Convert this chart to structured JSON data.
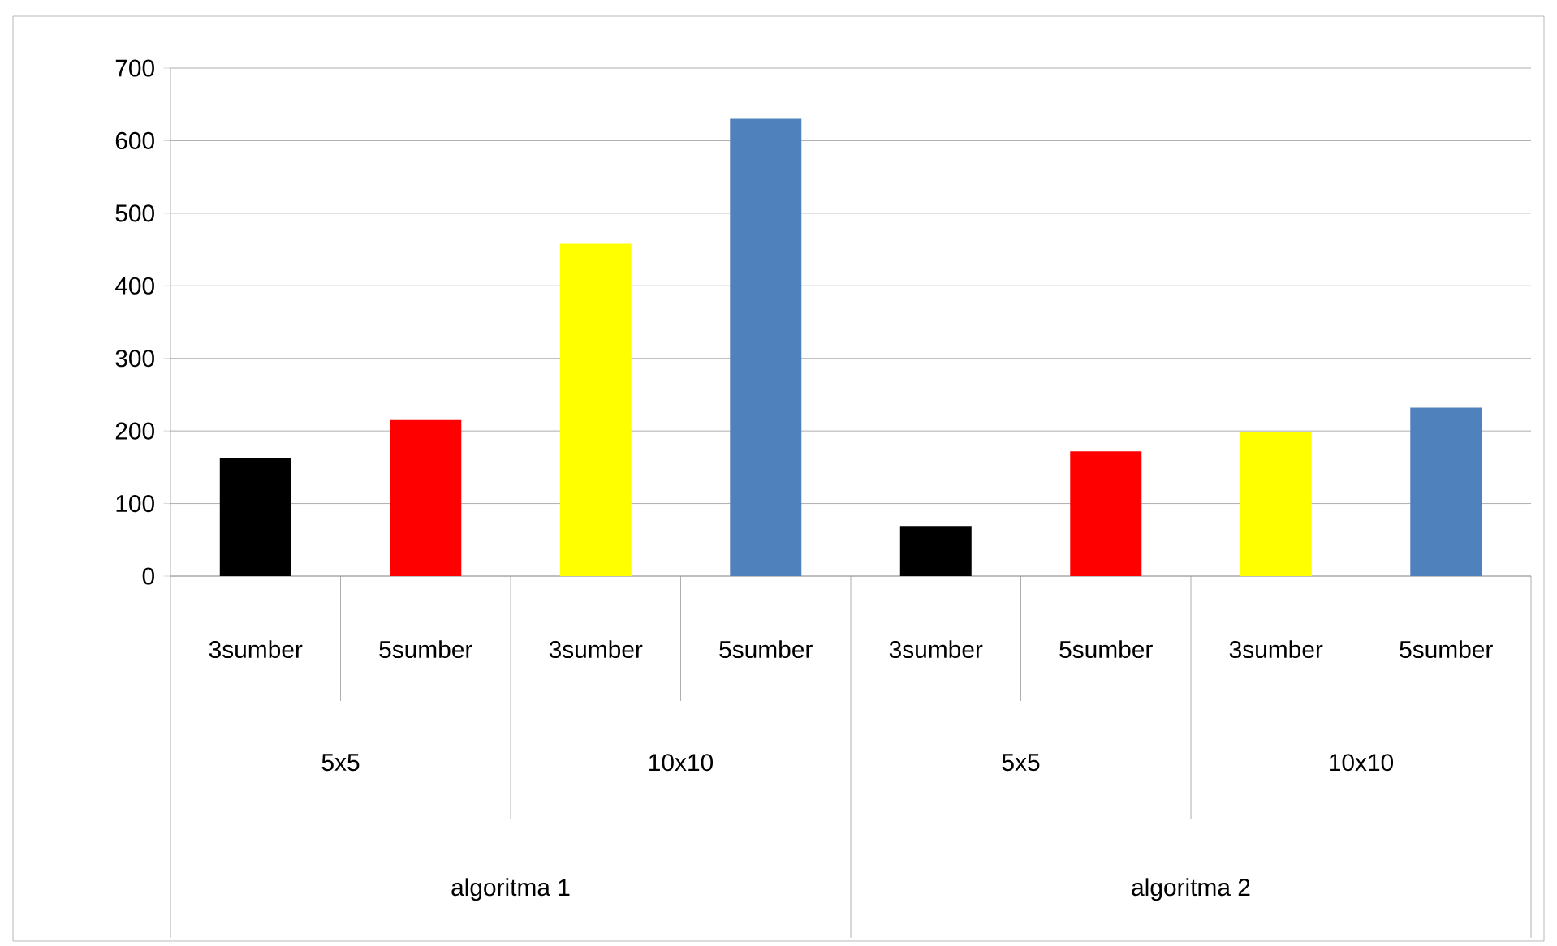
{
  "chart_data": {
    "type": "bar",
    "categories": [
      "3sumber",
      "5sumber",
      "3sumber",
      "5sumber",
      "3sumber",
      "5sumber",
      "3sumber",
      "5sumber"
    ],
    "values": [
      163,
      215,
      458,
      630,
      69,
      172,
      198,
      232
    ],
    "colors": [
      "#000000",
      "#ff0000",
      "#ffff00",
      "#4f81bd",
      "#000000",
      "#ff0000",
      "#ffff00",
      "#4f81bd"
    ],
    "ylim": [
      0,
      700
    ],
    "yticks": [
      0,
      100,
      200,
      300,
      400,
      500,
      600,
      700
    ],
    "grid": "y",
    "annotations": [
      "5x5",
      "10x10",
      "5x5",
      "10x10",
      "algoritma 1",
      "algoritma 2"
    ]
  }
}
